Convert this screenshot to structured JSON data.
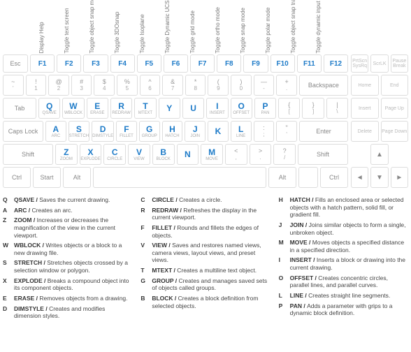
{
  "colors": {
    "accent": "#1e7bc8",
    "key_border": "#dddddd",
    "text_muted": "#888888",
    "sub": "#aaaaaa"
  },
  "flabels": [
    "Display Help",
    "Toggle text screen",
    "Toggle object snap mode",
    "Toggle 3DOsnap",
    "Toggle Isoplane",
    "Toggle Dynamic UCS",
    "Toggle grid mode",
    "Toggle ortho mode",
    "Toggle snap mode",
    "Toggle polar mode",
    "Toggle object snap tracking",
    "Toggle dynamic input mode"
  ],
  "esc": "Esc",
  "fkeys": [
    "F1",
    "F2",
    "F3",
    "F4",
    "F5",
    "F6",
    "F7",
    "F8",
    "F9",
    "F10",
    "F11",
    "F12"
  ],
  "sysrow": [
    "PrtScn SysRq",
    "ScrLK",
    "Pause Break"
  ],
  "numrow": [
    {
      "t": "~",
      "b": "'"
    },
    {
      "t": "!",
      "b": "1"
    },
    {
      "t": "@",
      "b": "2"
    },
    {
      "t": "#",
      "b": "3"
    },
    {
      "t": "$",
      "b": "4"
    },
    {
      "t": "%",
      "b": "5"
    },
    {
      "t": "^",
      "b": "6"
    },
    {
      "t": "&",
      "b": "7"
    },
    {
      "t": "*",
      "b": "8"
    },
    {
      "t": "(",
      "b": "9"
    },
    {
      "t": ")",
      "b": "0"
    },
    {
      "t": "—",
      "b": "-"
    },
    {
      "t": "+",
      "b": "."
    }
  ],
  "backspace": "Backspace",
  "side1": [
    "Home",
    "End"
  ],
  "tab": "Tab",
  "qrow": [
    {
      "l": "Q",
      "s": "QSAVE"
    },
    {
      "l": "W",
      "s": "WBLOCK"
    },
    {
      "l": "E",
      "s": "ERASE"
    },
    {
      "l": "R",
      "s": "REDRAW"
    },
    {
      "l": "T",
      "s": "MTEXT"
    },
    {
      "l": "Y",
      "s": ""
    },
    {
      "l": "U",
      "s": ""
    },
    {
      "l": "I",
      "s": "INSERT"
    },
    {
      "l": "O",
      "s": "OFFSET"
    },
    {
      "l": "P",
      "s": "PAN"
    }
  ],
  "qrow_tail": [
    {
      "t": "{",
      "b": "["
    },
    {
      "t": "}",
      "b": "]"
    },
    {
      "t": "|",
      "b": "\\"
    }
  ],
  "side2": [
    "Insert",
    "Page Up"
  ],
  "caps": "Caps Lock",
  "arow": [
    {
      "l": "A",
      "s": "ARC"
    },
    {
      "l": "S",
      "s": "STRETCH"
    },
    {
      "l": "D",
      "s": "DIMSTYLE"
    },
    {
      "l": "F",
      "s": "FILLET"
    },
    {
      "l": "G",
      "s": "GROUP"
    },
    {
      "l": "H",
      "s": "HATCH"
    },
    {
      "l": "J",
      "s": "JOIN"
    },
    {
      "l": "K",
      "s": ""
    },
    {
      "l": "L",
      "s": "LINE"
    }
  ],
  "arow_tail": [
    {
      "t": ":",
      "b": ";"
    },
    {
      "t": "\"",
      "b": "'"
    }
  ],
  "enter": "Enter",
  "side3": [
    "Delete",
    "Page Down"
  ],
  "shift": "Shift",
  "zrow": [
    {
      "l": "Z",
      "s": "ZOOM"
    },
    {
      "l": "X",
      "s": "EXPLODE"
    },
    {
      "l": "C",
      "s": "CIRCLE"
    },
    {
      "l": "V",
      "s": "VIEW"
    },
    {
      "l": "B",
      "s": "BLOCK"
    },
    {
      "l": "N",
      "s": ""
    },
    {
      "l": "M",
      "s": "MOVE"
    }
  ],
  "zrow_tail": [
    {
      "t": "<",
      "b": ","
    },
    {
      "t": ">",
      "b": "."
    },
    {
      "t": "?",
      "b": "/"
    }
  ],
  "side4_up": "▲",
  "ctrl": "Ctrl",
  "start": "Start",
  "alt": "Alt",
  "arrows": [
    "◄",
    "▼",
    "►"
  ],
  "glossary": [
    [
      {
        "k": "Q",
        "c": "QSAVE",
        "d": "Saves the current drawing."
      },
      {
        "k": "A",
        "c": "ARC",
        "d": "Creates an arc."
      },
      {
        "k": "Z",
        "c": "ZOOM",
        "d": "Increases or decreases the magnification of the view in the current viewport."
      },
      {
        "k": "W",
        "c": "WBLOCK",
        "d": "Writes objects or a block to a new drawing file."
      },
      {
        "k": "S",
        "c": "STRETCH",
        "d": "Stretches objects crossed by a selection window or polygon."
      },
      {
        "k": "X",
        "c": "EXPLODE",
        "d": "Breaks a compound object into its component objects."
      },
      {
        "k": "E",
        "c": "ERASE",
        "d": "Removes objects from a drawing."
      },
      {
        "k": "D",
        "c": "DIMSTYLE",
        "d": "Creates and modifies dimension styles."
      }
    ],
    [
      {
        "k": "C",
        "c": "CIRCLE",
        "d": "Creates a circle."
      },
      {
        "k": "R",
        "c": "REDRAW",
        "d": "Refreshes the display in the current viewport."
      },
      {
        "k": "F",
        "c": "FILLET",
        "d": "Rounds and fillets the edges of objects."
      },
      {
        "k": "V",
        "c": "VIEW",
        "d": "Saves and restores named views, camera views, layout views, and preset views."
      },
      {
        "k": "T",
        "c": "MTEXT",
        "d": "Creates a multiline text object."
      },
      {
        "k": "G",
        "c": "GROUP",
        "d": "Creates and manages saved sets of objects called groups."
      },
      {
        "k": "B",
        "c": "BLOCK",
        "d": "Creates a block definition from selected objects."
      }
    ],
    [
      {
        "k": "H",
        "c": "HATCH",
        "d": "Fills an enclosed area or selected objects with a hatch pattern, solid fill, or gradient fill."
      },
      {
        "k": "J",
        "c": "JOIN",
        "d": "Joins similar objects to form a single, unbroken object."
      },
      {
        "k": "M",
        "c": "MOVE",
        "d": "Moves objects a specified distance in a specified direction."
      },
      {
        "k": "I",
        "c": "INSERT",
        "d": "Inserts a block or drawing into the current drawing."
      },
      {
        "k": "O",
        "c": "OFFSET",
        "d": "Creates concentric circles, parallel lines, and parallel curves."
      },
      {
        "k": "L",
        "c": "LINE",
        "d": "Creates straight line segments."
      },
      {
        "k": "P",
        "c": "PAN",
        "d": "Adds a parameter with grips to a dynamic block definition."
      }
    ]
  ]
}
